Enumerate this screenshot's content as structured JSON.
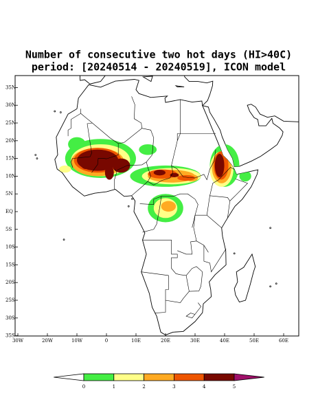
{
  "title": [
    "Number of consecutive two hot days (HI>40C)",
    "period: [20240514 - 20240519], ICON model"
  ],
  "map": {
    "lon_ticks": [
      {
        "value": -30,
        "label": "30W"
      },
      {
        "value": -20,
        "label": "20W"
      },
      {
        "value": -10,
        "label": "10W"
      },
      0,
      {
        "value": 10,
        "label": "10E"
      },
      {
        "value": 20,
        "label": "20E"
      },
      {
        "value": 30,
        "label": "30E"
      },
      {
        "value": 40,
        "label": "40E"
      },
      {
        "value": 50,
        "label": "50E"
      },
      {
        "value": 60,
        "label": "60E"
      }
    ],
    "lat_ticks": [
      {
        "value": 35,
        "label": "35N"
      },
      {
        "value": 30,
        "label": "30N"
      },
      {
        "value": 25,
        "label": "25N"
      },
      {
        "value": 20,
        "label": "20N"
      },
      {
        "value": 15,
        "label": "15N"
      },
      {
        "value": 10,
        "label": "10N"
      },
      {
        "value": 5,
        "label": "5N"
      },
      {
        "value": 0,
        "label": "EQ"
      },
      {
        "value": -5,
        "label": "5S"
      },
      {
        "value": -10,
        "label": "10S"
      },
      {
        "value": -15,
        "label": "15S"
      },
      {
        "value": -20,
        "label": "20S"
      },
      {
        "value": -25,
        "label": "25S"
      },
      {
        "value": -30,
        "label": "30S"
      },
      {
        "value": -35,
        "label": "35S"
      }
    ]
  },
  "colorbar": {
    "levels": [
      0,
      1,
      2,
      3,
      4,
      5
    ],
    "colors": [
      "#ffffff",
      "#44ee44",
      "#ffff88",
      "#ffaa22",
      "#ee5500",
      "#780800",
      "#a0106a"
    ]
  }
}
